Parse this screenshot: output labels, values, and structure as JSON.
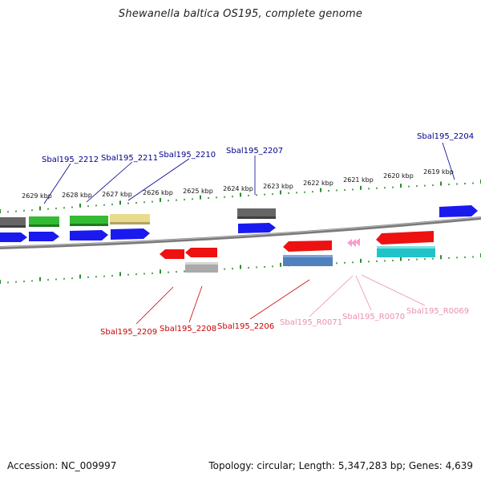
{
  "title": "Shewanella baltica OS195, complete genome",
  "footer": {
    "accession": "Accession: NC_009997",
    "summary": "Topology: circular; Length: 5,347,283 bp; Genes: 4,639"
  },
  "colors": {
    "tick": "#2e8b2e",
    "top_label": "#00008b",
    "bottom_label": "#cc0000",
    "rna_label": "#e890b0",
    "backbone": "#808080"
  },
  "kbp_labels": [
    "2629 kbp",
    "2628 kbp",
    "2627 kbp",
    "2626 kbp",
    "2625 kbp",
    "2624 kbp",
    "2623 kbp",
    "2622 kbp",
    "2621 kbp",
    "2620 kbp",
    "2619 kbp"
  ],
  "top_genes": [
    "Sbal195_2212",
    "Sbal195_2211",
    "Sbal195_2210",
    "Sbal195_2207",
    "Sbal195_2204"
  ],
  "bottom_genes": [
    "Sbal195_2209",
    "Sbal195_2208",
    "Sbal195_2206",
    "Sbal195_R0071",
    "Sbal195_R0070",
    "Sbal195_R0069"
  ],
  "feature_colors": {
    "cds_forward": "#1a1aee",
    "cds_reverse": "#ee1111",
    "gray_dark": "#666666",
    "gray_light": "#aaaaaa",
    "green": "#33bb33",
    "khaki": "#e8dc8c",
    "steelblue": "#4f81bd",
    "cyan": "#20c4c8",
    "rna": "#ff99cc"
  }
}
